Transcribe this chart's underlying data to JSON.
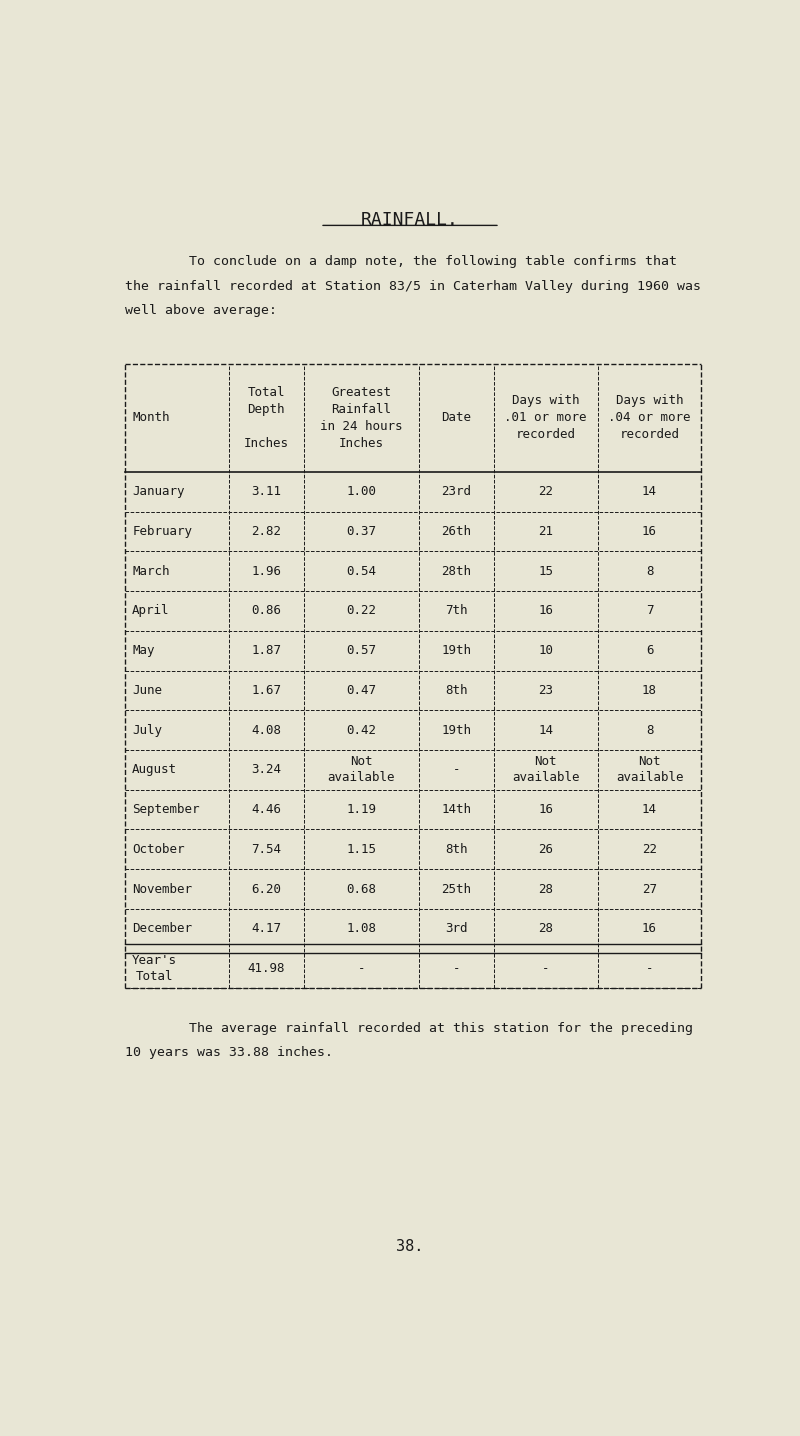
{
  "title": "RAINFALL.",
  "intro_text": [
    "        To conclude on a damp note, the following table confirms that",
    "the rainfall recorded at Station 83/5 in Caterham Valley during 1960 was",
    "well above average:"
  ],
  "col_header_lines": [
    "Month",
    "Total\nDepth\n\nInches",
    "Greatest\nRainfall\nin 24 hours\nInches",
    "Date",
    "Days with\n.01 or more\nrecorded",
    "Days with\n.04 or more\nrecorded"
  ],
  "rows": [
    [
      "January",
      "3.11",
      "1.00",
      "23rd",
      "22",
      "14"
    ],
    [
      "February",
      "2.82",
      "0.37",
      "26th",
      "21",
      "16"
    ],
    [
      "March",
      "1.96",
      "0.54",
      "28th",
      "15",
      "8"
    ],
    [
      "April",
      "0.86",
      "0.22",
      "7th",
      "16",
      "7"
    ],
    [
      "May",
      "1.87",
      "0.57",
      "19th",
      "10",
      "6"
    ],
    [
      "June",
      "1.67",
      "0.47",
      "8th",
      "23",
      "18"
    ],
    [
      "July",
      "4.08",
      "0.42",
      "19th",
      "14",
      "8"
    ],
    [
      "August",
      "3.24",
      "Not\navailable",
      "-",
      "Not\navailable",
      "Not\navailable"
    ],
    [
      "September",
      "4.46",
      "1.19",
      "14th",
      "16",
      "14"
    ],
    [
      "October",
      "7.54",
      "1.15",
      "8th",
      "26",
      "22"
    ],
    [
      "November",
      "6.20",
      "0.68",
      "25th",
      "28",
      "27"
    ],
    [
      "December",
      "4.17",
      "1.08",
      "3rd",
      "28",
      "16"
    ],
    [
      "Year's\nTotal",
      "41.98",
      "-",
      "-",
      "-",
      "-"
    ]
  ],
  "footer_text": [
    "        The average rainfall recorded at this station for the preceding",
    "10 years was 33.88 inches."
  ],
  "page_number": "38.",
  "bg_color": "#e8e6d5",
  "text_color": "#1a1a1a"
}
